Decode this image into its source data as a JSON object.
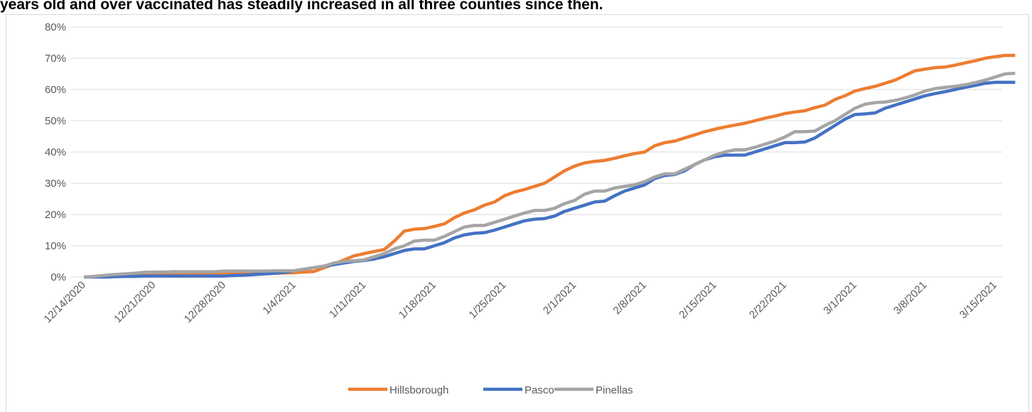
{
  "chart_data": {
    "type": "line",
    "title": "years old and over vaccinated has steadily increased in all three counties since then.",
    "categories": [
      "12/14/2020",
      null,
      null,
      null,
      null,
      null,
      null,
      "12/21/2020",
      null,
      null,
      null,
      null,
      null,
      null,
      "12/28/2020",
      null,
      null,
      null,
      null,
      null,
      null,
      "1/4/2021",
      null,
      null,
      null,
      null,
      null,
      null,
      "1/11/2021",
      null,
      null,
      null,
      null,
      null,
      null,
      "1/18/2021",
      null,
      null,
      null,
      null,
      null,
      null,
      "1/25/2021",
      null,
      null,
      null,
      null,
      null,
      null,
      "2/1/2021",
      null,
      null,
      null,
      null,
      null,
      null,
      "2/8/2021",
      null,
      null,
      null,
      null,
      null,
      null,
      "2/15/2021",
      null,
      null,
      null,
      null,
      null,
      null,
      "2/22/2021",
      null,
      null,
      null,
      null,
      null,
      null,
      "3/1/2021",
      null,
      null,
      null,
      null,
      null,
      null,
      "3/8/2021",
      null,
      null,
      null,
      null,
      null,
      null,
      "3/15/2021",
      null,
      null
    ],
    "series": [
      {
        "name": "Hillsborough",
        "color": "#ED7D31",
        "values": [
          0,
          0.1,
          0.2,
          0.3,
          0.4,
          0.5,
          0.5,
          0.6,
          0.6,
          0.7,
          0.7,
          0.8,
          0.8,
          0.9,
          0.9,
          1.0,
          1.0,
          1.1,
          1.1,
          1.2,
          1.3,
          1.4,
          1.6,
          1.8,
          3.0,
          4.2,
          5.5,
          6.8,
          7.5,
          8.2,
          8.8,
          11.5,
          14.7,
          15.3,
          15.5,
          16.2,
          17.0,
          19.0,
          20.5,
          21.5,
          23.0,
          24.0,
          26.0,
          27.2,
          28.0,
          29.0,
          30.0,
          32.0,
          34.0,
          35.5,
          36.5,
          37.0,
          37.3,
          38.0,
          38.8,
          39.5,
          40.0,
          42.0,
          43.0,
          43.5,
          44.5,
          45.5,
          46.5,
          47.3,
          48.0,
          48.6,
          49.2,
          50.0,
          50.8,
          51.5,
          52.3,
          52.8,
          53.2,
          54.2,
          55.0,
          56.8,
          58.0,
          59.5,
          60.3,
          61.0,
          62.0,
          63.0,
          64.5,
          66.0,
          66.5,
          67.0,
          67.2,
          67.8,
          68.5,
          69.2,
          70.0,
          70.5,
          70.9,
          70.9
        ]
      },
      {
        "name": "Pasco",
        "color": "#4472C4",
        "values": [
          0,
          0,
          0,
          0.1,
          0.2,
          0.2,
          0.3,
          0.3,
          0.3,
          0.3,
          0.3,
          0.3,
          0.3,
          0.3,
          0.3,
          0.5,
          0.6,
          0.8,
          1.0,
          1.2,
          1.5,
          2.0,
          2.5,
          3.0,
          3.5,
          4.0,
          4.5,
          5.0,
          5.3,
          5.8,
          6.5,
          7.5,
          8.5,
          9.0,
          9.0,
          10.0,
          11.0,
          12.5,
          13.5,
          14.0,
          14.2,
          15.0,
          16.0,
          17.0,
          18.0,
          18.5,
          18.7,
          19.5,
          21.0,
          22.0,
          23.0,
          24.0,
          24.3,
          26.0,
          27.5,
          28.5,
          29.5,
          31.5,
          32.5,
          32.8,
          34.0,
          36.0,
          37.5,
          38.5,
          39.0,
          39.0,
          39.0,
          40.0,
          41.0,
          42.0,
          43.0,
          43.0,
          43.2,
          44.5,
          46.5,
          48.5,
          50.5,
          52.0,
          52.2,
          52.5,
          54.0,
          55.0,
          56.0,
          57.0,
          58.0,
          58.7,
          59.3,
          60.0,
          60.7,
          61.3,
          62.0,
          62.3,
          62.3,
          62.3
        ]
      },
      {
        "name": "Pinellas",
        "color": "#A5A5A5",
        "values": [
          0,
          0.2,
          0.5,
          0.8,
          1.0,
          1.2,
          1.5,
          1.6,
          1.6,
          1.7,
          1.7,
          1.7,
          1.7,
          1.7,
          1.9,
          1.9,
          1.9,
          1.9,
          1.9,
          2.0,
          2.0,
          2.0,
          2.5,
          3.0,
          3.5,
          4.5,
          5.0,
          5.2,
          5.5,
          6.5,
          7.5,
          9.0,
          10.0,
          11.5,
          11.8,
          11.8,
          13.0,
          14.5,
          16.0,
          16.5,
          16.5,
          17.5,
          18.5,
          19.5,
          20.5,
          21.3,
          21.3,
          22.0,
          23.5,
          24.5,
          26.5,
          27.5,
          27.5,
          28.5,
          29.0,
          29.5,
          30.5,
          32.0,
          33.0,
          33.0,
          34.5,
          36.0,
          37.5,
          39.0,
          40.0,
          40.7,
          40.7,
          41.5,
          42.5,
          43.5,
          44.8,
          46.5,
          46.5,
          46.7,
          48.5,
          50.0,
          52.0,
          54.0,
          55.3,
          55.8,
          56.0,
          56.5,
          57.3,
          58.3,
          59.5,
          60.3,
          60.7,
          61.0,
          61.5,
          62.2,
          63.0,
          64.0,
          65.0,
          65.2
        ]
      }
    ],
    "ylim": [
      0,
      80
    ],
    "yticks": [
      {
        "value": 0,
        "label": "0%"
      },
      {
        "value": 10,
        "label": "10%"
      },
      {
        "value": 20,
        "label": "20%"
      },
      {
        "value": 30,
        "label": "30%"
      },
      {
        "value": 40,
        "label": "40%"
      },
      {
        "value": 50,
        "label": "50%"
      },
      {
        "value": 60,
        "label": "60%"
      },
      {
        "value": 70,
        "label": "70%"
      },
      {
        "value": 80,
        "label": "80%"
      }
    ],
    "grid": true,
    "legend": "bottom"
  }
}
